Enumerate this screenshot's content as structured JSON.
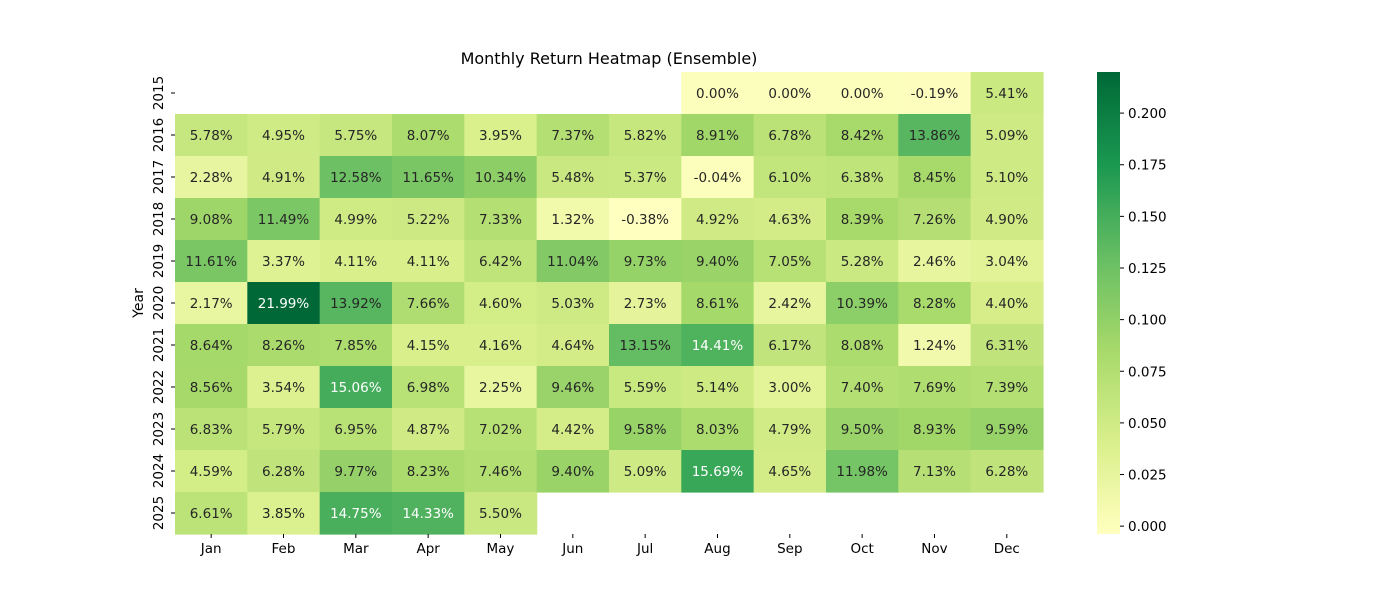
{
  "chart_data": {
    "type": "heatmap",
    "title": "Monthly Return Heatmap (Ensemble)",
    "xlabel": "",
    "ylabel": "Year",
    "columns": [
      "Jan",
      "Feb",
      "Mar",
      "Apr",
      "May",
      "Jun",
      "Jul",
      "Aug",
      "Sep",
      "Oct",
      "Nov",
      "Dec"
    ],
    "rows": [
      "2015",
      "2016",
      "2017",
      "2018",
      "2019",
      "2020",
      "2021",
      "2022",
      "2023",
      "2024",
      "2025"
    ],
    "values": [
      [
        null,
        null,
        null,
        null,
        null,
        null,
        null,
        0.0,
        0.0,
        0.0,
        -0.0019,
        0.0541
      ],
      [
        0.0578,
        0.0495,
        0.0575,
        0.0807,
        0.0395,
        0.0737,
        0.0582,
        0.0891,
        0.0678,
        0.0842,
        0.1386,
        0.0509
      ],
      [
        0.0228,
        0.0491,
        0.1258,
        0.1165,
        0.1034,
        0.0548,
        0.0537,
        -0.0004,
        0.061,
        0.0638,
        0.0845,
        0.051
      ],
      [
        0.0908,
        0.1149,
        0.0499,
        0.0522,
        0.0733,
        0.0132,
        -0.0038,
        0.0492,
        0.0463,
        0.0839,
        0.0726,
        0.049
      ],
      [
        0.1161,
        0.0337,
        0.0411,
        0.0411,
        0.0642,
        0.1104,
        0.0973,
        0.094,
        0.0705,
        0.0528,
        0.0246,
        0.0304
      ],
      [
        0.0217,
        0.2199,
        0.1392,
        0.0766,
        0.046,
        0.0503,
        0.0273,
        0.0861,
        0.0242,
        0.1039,
        0.0828,
        0.044
      ],
      [
        0.0864,
        0.0826,
        0.0785,
        0.0415,
        0.0416,
        0.0464,
        0.1315,
        0.1441,
        0.0617,
        0.0808,
        0.0124,
        0.0631
      ],
      [
        0.0856,
        0.0354,
        0.1506,
        0.0698,
        0.0225,
        0.0946,
        0.0559,
        0.0514,
        0.03,
        0.074,
        0.0769,
        0.0739
      ],
      [
        0.0683,
        0.0579,
        0.0695,
        0.0487,
        0.0702,
        0.0442,
        0.0958,
        0.0803,
        0.0479,
        0.095,
        0.0893,
        0.0959
      ],
      [
        0.0459,
        0.0628,
        0.0977,
        0.0823,
        0.0746,
        0.094,
        0.0509,
        0.1569,
        0.0465,
        0.1198,
        0.0713,
        0.0628
      ],
      [
        0.0661,
        0.0385,
        0.1475,
        0.1433,
        0.055,
        null,
        null,
        null,
        null,
        null,
        null,
        null
      ]
    ],
    "labels": [
      [
        null,
        null,
        null,
        null,
        null,
        null,
        null,
        "0.00%",
        "0.00%",
        "0.00%",
        "-0.19%",
        "5.41%"
      ],
      [
        "5.78%",
        "4.95%",
        "5.75%",
        "8.07%",
        "3.95%",
        "7.37%",
        "5.82%",
        "8.91%",
        "6.78%",
        "8.42%",
        "13.86%",
        "5.09%"
      ],
      [
        "2.28%",
        "4.91%",
        "12.58%",
        "11.65%",
        "10.34%",
        "5.48%",
        "5.37%",
        "-0.04%",
        "6.10%",
        "6.38%",
        "8.45%",
        "5.10%"
      ],
      [
        "9.08%",
        "11.49%",
        "4.99%",
        "5.22%",
        "7.33%",
        "1.32%",
        "-0.38%",
        "4.92%",
        "4.63%",
        "8.39%",
        "7.26%",
        "4.90%"
      ],
      [
        "11.61%",
        "3.37%",
        "4.11%",
        "4.11%",
        "6.42%",
        "11.04%",
        "9.73%",
        "9.40%",
        "7.05%",
        "5.28%",
        "2.46%",
        "3.04%"
      ],
      [
        "2.17%",
        "21.99%",
        "13.92%",
        "7.66%",
        "4.60%",
        "5.03%",
        "2.73%",
        "8.61%",
        "2.42%",
        "10.39%",
        "8.28%",
        "4.40%"
      ],
      [
        "8.64%",
        "8.26%",
        "7.85%",
        "4.15%",
        "4.16%",
        "4.64%",
        "13.15%",
        "14.41%",
        "6.17%",
        "8.08%",
        "1.24%",
        "6.31%"
      ],
      [
        "8.56%",
        "3.54%",
        "15.06%",
        "6.98%",
        "2.25%",
        "9.46%",
        "5.59%",
        "5.14%",
        "3.00%",
        "7.40%",
        "7.69%",
        "7.39%"
      ],
      [
        "6.83%",
        "5.79%",
        "6.95%",
        "4.87%",
        "7.02%",
        "4.42%",
        "9.58%",
        "8.03%",
        "4.79%",
        "9.50%",
        "8.93%",
        "9.59%"
      ],
      [
        "4.59%",
        "6.28%",
        "9.77%",
        "8.23%",
        "7.46%",
        "9.40%",
        "5.09%",
        "15.69%",
        "4.65%",
        "11.98%",
        "7.13%",
        "6.28%"
      ],
      [
        "6.61%",
        "3.85%",
        "14.75%",
        "14.33%",
        "5.50%",
        null,
        null,
        null,
        null,
        null,
        null,
        null
      ]
    ],
    "colormap": "RdYlGn-like (light yellow to dark green)",
    "vmin": -0.0038,
    "vmax": 0.2199,
    "colorbar": {
      "ticks": [
        0.0,
        0.025,
        0.05,
        0.075,
        0.1,
        0.125,
        0.15,
        0.175,
        0.2
      ],
      "tick_labels": [
        "0.000",
        "0.025",
        "0.050",
        "0.075",
        "0.100",
        "0.125",
        "0.150",
        "0.175",
        "0.200"
      ]
    }
  },
  "colors": {
    "stops": [
      "#ffffbf",
      "#d9ef8b",
      "#a6d96a",
      "#66bd63",
      "#1a9850",
      "#006837"
    ],
    "text_dark": "#262626",
    "text_light": "#ffffff"
  }
}
